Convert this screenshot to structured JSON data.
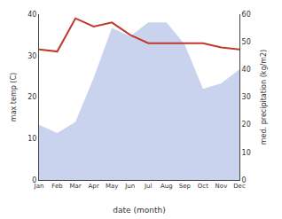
{
  "chart_data": {
    "type": "line",
    "xlabel": "date (month)",
    "ylabel": "max temp (C)",
    "y2label": "med. precipitation (kg/m2)",
    "categories": [
      "Jan",
      "Feb",
      "Mar",
      "Apr",
      "May",
      "Jun",
      "Jul",
      "Aug",
      "Sep",
      "Oct",
      "Nov",
      "Dec"
    ],
    "series": [
      {
        "type": "line",
        "color": "#c0392b",
        "values": [
          31.5,
          31.0,
          39.0,
          37.0,
          38.0,
          35.0,
          33.0,
          33.0,
          33.0,
          33.0,
          32.0,
          31.5
        ]
      },
      {
        "type": "area",
        "color": "#b8c4e8",
        "axis": "y2",
        "values": [
          20,
          17,
          21,
          37,
          55,
          52,
          57,
          57,
          49,
          33,
          35,
          40
        ]
      }
    ],
    "ylim": [
      0,
      40
    ],
    "yticks": [
      0,
      10,
      20,
      30,
      40
    ],
    "y2lim": [
      0,
      60
    ],
    "y2ticks": [
      0,
      10,
      20,
      30,
      40,
      50,
      60
    ],
    "grid": false
  }
}
